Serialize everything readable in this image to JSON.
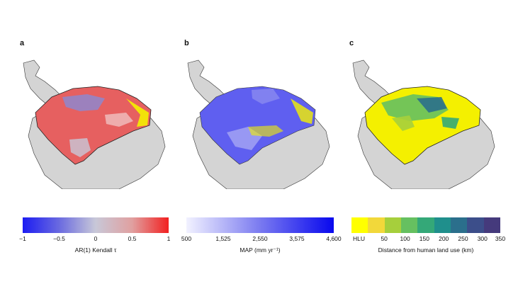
{
  "panels": {
    "a": {
      "label": "a"
    },
    "b": {
      "label": "b"
    },
    "c": {
      "label": "c"
    }
  },
  "colorbars": {
    "a": {
      "ticks": [
        "−1",
        "−0.5",
        "0",
        "0.5",
        "1"
      ],
      "title": "AR(1) Kendall τ",
      "colors": [
        "#1c1cf2",
        "#6a6ae0",
        "#c8c8d8",
        "#e0a0a0",
        "#f22020"
      ]
    },
    "b": {
      "ticks": [
        "500",
        "1,525",
        "2,550",
        "3,575",
        "4,600"
      ],
      "title": "MAP (mm yr⁻¹)",
      "colors": [
        "#f2f2ff",
        "#7a7af0",
        "#0808ee"
      ]
    },
    "c": {
      "ticks": [
        "HLU",
        "50",
        "100",
        "150",
        "200",
        "250",
        "300",
        "350"
      ],
      "title": "Distance from human land use (km)",
      "colors": [
        "#ffff00",
        "#f2d83a",
        "#a6cf3c",
        "#66c060",
        "#34a878",
        "#1f8f8c",
        "#2b6f8c",
        "#3c4e8a",
        "#453a7c"
      ]
    }
  },
  "map_colors": {
    "land": "#d4d4d4",
    "border": "#333333",
    "hlu_yellow": "#f4f000"
  }
}
